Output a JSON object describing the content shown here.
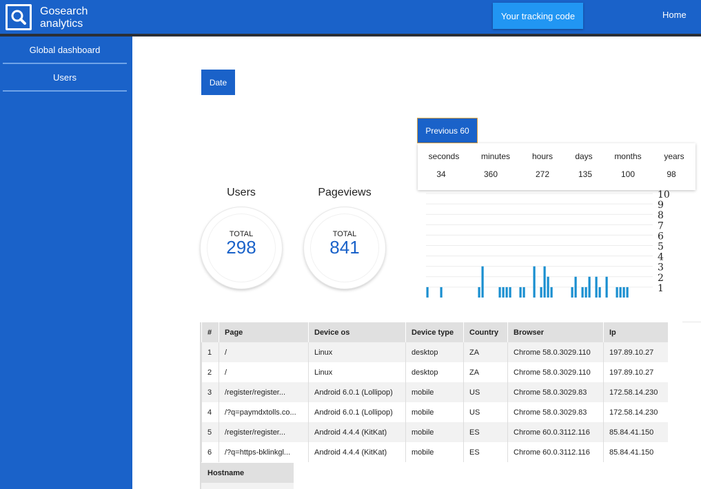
{
  "brand": {
    "line1": "Gosearch",
    "line2": "analytics",
    "icon": "search-icon"
  },
  "header": {
    "tracking_button": "Your tracking code",
    "home_link": "Home"
  },
  "sidebar": {
    "items": [
      {
        "label": "Global dashboard"
      },
      {
        "label": "Users"
      }
    ]
  },
  "filters": {
    "date_button": "Date",
    "previous_button": "Previous 60"
  },
  "periods": [
    {
      "label": "seconds",
      "value": "34"
    },
    {
      "label": "minutes",
      "value": "360"
    },
    {
      "label": "hours",
      "value": "272"
    },
    {
      "label": "days",
      "value": "135"
    },
    {
      "label": "months",
      "value": "100"
    },
    {
      "label": "years",
      "value": "98"
    }
  ],
  "stats": {
    "users": {
      "title": "Users",
      "label": "TOTAL",
      "value": "298"
    },
    "pageviews": {
      "title": "Pageviews",
      "label": "TOTAL",
      "value": "841"
    }
  },
  "chart_data": {
    "type": "bar",
    "y_ticks": [
      "10",
      "9",
      "8",
      "7",
      "6",
      "5",
      "4",
      "3",
      "2",
      "1"
    ],
    "ylim": [
      0,
      10
    ],
    "grid": true,
    "color": "#1a8fd0",
    "values": [
      1,
      0,
      0,
      0,
      1,
      0,
      0,
      0,
      0,
      0,
      0,
      0,
      0,
      0,
      0,
      1,
      3,
      0,
      0,
      0,
      0,
      1,
      1,
      1,
      1,
      0,
      0,
      1,
      1,
      0,
      0,
      3,
      0,
      1,
      3,
      2,
      1,
      0,
      0,
      0,
      0,
      0,
      1,
      2,
      0,
      1,
      1,
      2,
      0,
      2,
      1,
      0,
      2,
      0,
      0,
      1,
      1,
      1,
      1
    ]
  },
  "table": {
    "columns": [
      "#",
      "Page",
      "Device os",
      "Device type",
      "Country",
      "Browser",
      "Ip"
    ],
    "rows": [
      [
        "1",
        "/",
        "Linux",
        "desktop",
        "ZA",
        "Chrome 58.0.3029.110",
        "197.89.10.27"
      ],
      [
        "2",
        "/",
        "Linux",
        "desktop",
        "ZA",
        "Chrome 58.0.3029.110",
        "197.89.10.27"
      ],
      [
        "3",
        "/register/register...",
        "Android 6.0.1 (Lollipop)",
        "mobile",
        "US",
        "Chrome 58.0.3029.83",
        "172.58.14.230"
      ],
      [
        "4",
        "/?q=paymdxtolls.co...",
        "Android 6.0.1 (Lollipop)",
        "mobile",
        "US",
        "Chrome 58.0.3029.83",
        "172.58.14.230"
      ],
      [
        "5",
        "/register/register...",
        "Android 4.4.4 (KitKat)",
        "mobile",
        "ES",
        "Chrome 60.0.3112.116",
        "85.84.41.150"
      ],
      [
        "6",
        "/?q=https-bklinkgl...",
        "Android 4.4.4 (KitKat)",
        "mobile",
        "ES",
        "Chrome 60.0.3112.116",
        "85.84.41.150"
      ]
    ]
  },
  "hostname_table": {
    "header": "Hostname"
  }
}
